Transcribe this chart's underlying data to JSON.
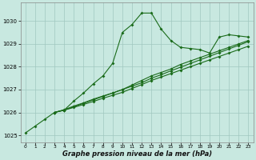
{
  "xlabel": "Graphe pression niveau de la mer (hPa)",
  "bg_color": "#c8e8e0",
  "grid_color": "#a0c8c0",
  "line_color": "#1a6b1a",
  "ylim": [
    1024.7,
    1030.8
  ],
  "xlim": [
    -0.5,
    23.5
  ],
  "yticks": [
    1025,
    1026,
    1027,
    1028,
    1029,
    1030
  ],
  "xticks": [
    0,
    1,
    2,
    3,
    4,
    5,
    6,
    7,
    8,
    9,
    10,
    11,
    12,
    13,
    14,
    15,
    16,
    17,
    18,
    19,
    20,
    21,
    22,
    23
  ],
  "series1_x": [
    0,
    1,
    2,
    3,
    4,
    5,
    6,
    7,
    8,
    9,
    10,
    11,
    12,
    13,
    14,
    15,
    16,
    17,
    18,
    19,
    20,
    21,
    22,
    23
  ],
  "series1_y": [
    1025.1,
    1025.4,
    1025.7,
    1026.0,
    1026.1,
    1026.5,
    1026.85,
    1027.25,
    1027.6,
    1028.15,
    1029.5,
    1029.85,
    1030.35,
    1030.35,
    1029.65,
    1029.15,
    1028.85,
    1028.8,
    1028.75,
    1028.6,
    1029.3,
    1029.4,
    1029.35,
    1029.3
  ],
  "series2_x": [
    3,
    4,
    5,
    6,
    7,
    8,
    9,
    10,
    11,
    12,
    13,
    14,
    15,
    16,
    17,
    18,
    19,
    20,
    21,
    22,
    23
  ],
  "series2_y": [
    1026.0,
    1026.1,
    1026.25,
    1026.4,
    1026.55,
    1026.7,
    1026.85,
    1027.0,
    1027.2,
    1027.4,
    1027.6,
    1027.75,
    1027.9,
    1028.1,
    1028.25,
    1028.4,
    1028.55,
    1028.7,
    1028.85,
    1029.0,
    1029.15
  ],
  "series3_x": [
    3,
    4,
    5,
    6,
    7,
    8,
    9,
    10,
    11,
    12,
    13,
    14,
    15,
    16,
    17,
    18,
    19,
    20,
    21,
    22,
    23
  ],
  "series3_y": [
    1026.0,
    1026.1,
    1026.22,
    1026.35,
    1026.48,
    1026.62,
    1026.75,
    1026.88,
    1027.05,
    1027.22,
    1027.4,
    1027.55,
    1027.7,
    1027.85,
    1028.0,
    1028.15,
    1028.3,
    1028.45,
    1028.6,
    1028.75,
    1028.9
  ],
  "series4_x": [
    3,
    4,
    5,
    6,
    7,
    8,
    9,
    10,
    11,
    12,
    13,
    14,
    15,
    16,
    17,
    18,
    19,
    20,
    21,
    22,
    23
  ],
  "series4_y": [
    1026.0,
    1026.12,
    1026.28,
    1026.42,
    1026.58,
    1026.72,
    1026.85,
    1027.0,
    1027.15,
    1027.3,
    1027.5,
    1027.65,
    1027.82,
    1027.98,
    1028.14,
    1028.3,
    1028.46,
    1028.62,
    1028.78,
    1028.94,
    1029.1
  ]
}
